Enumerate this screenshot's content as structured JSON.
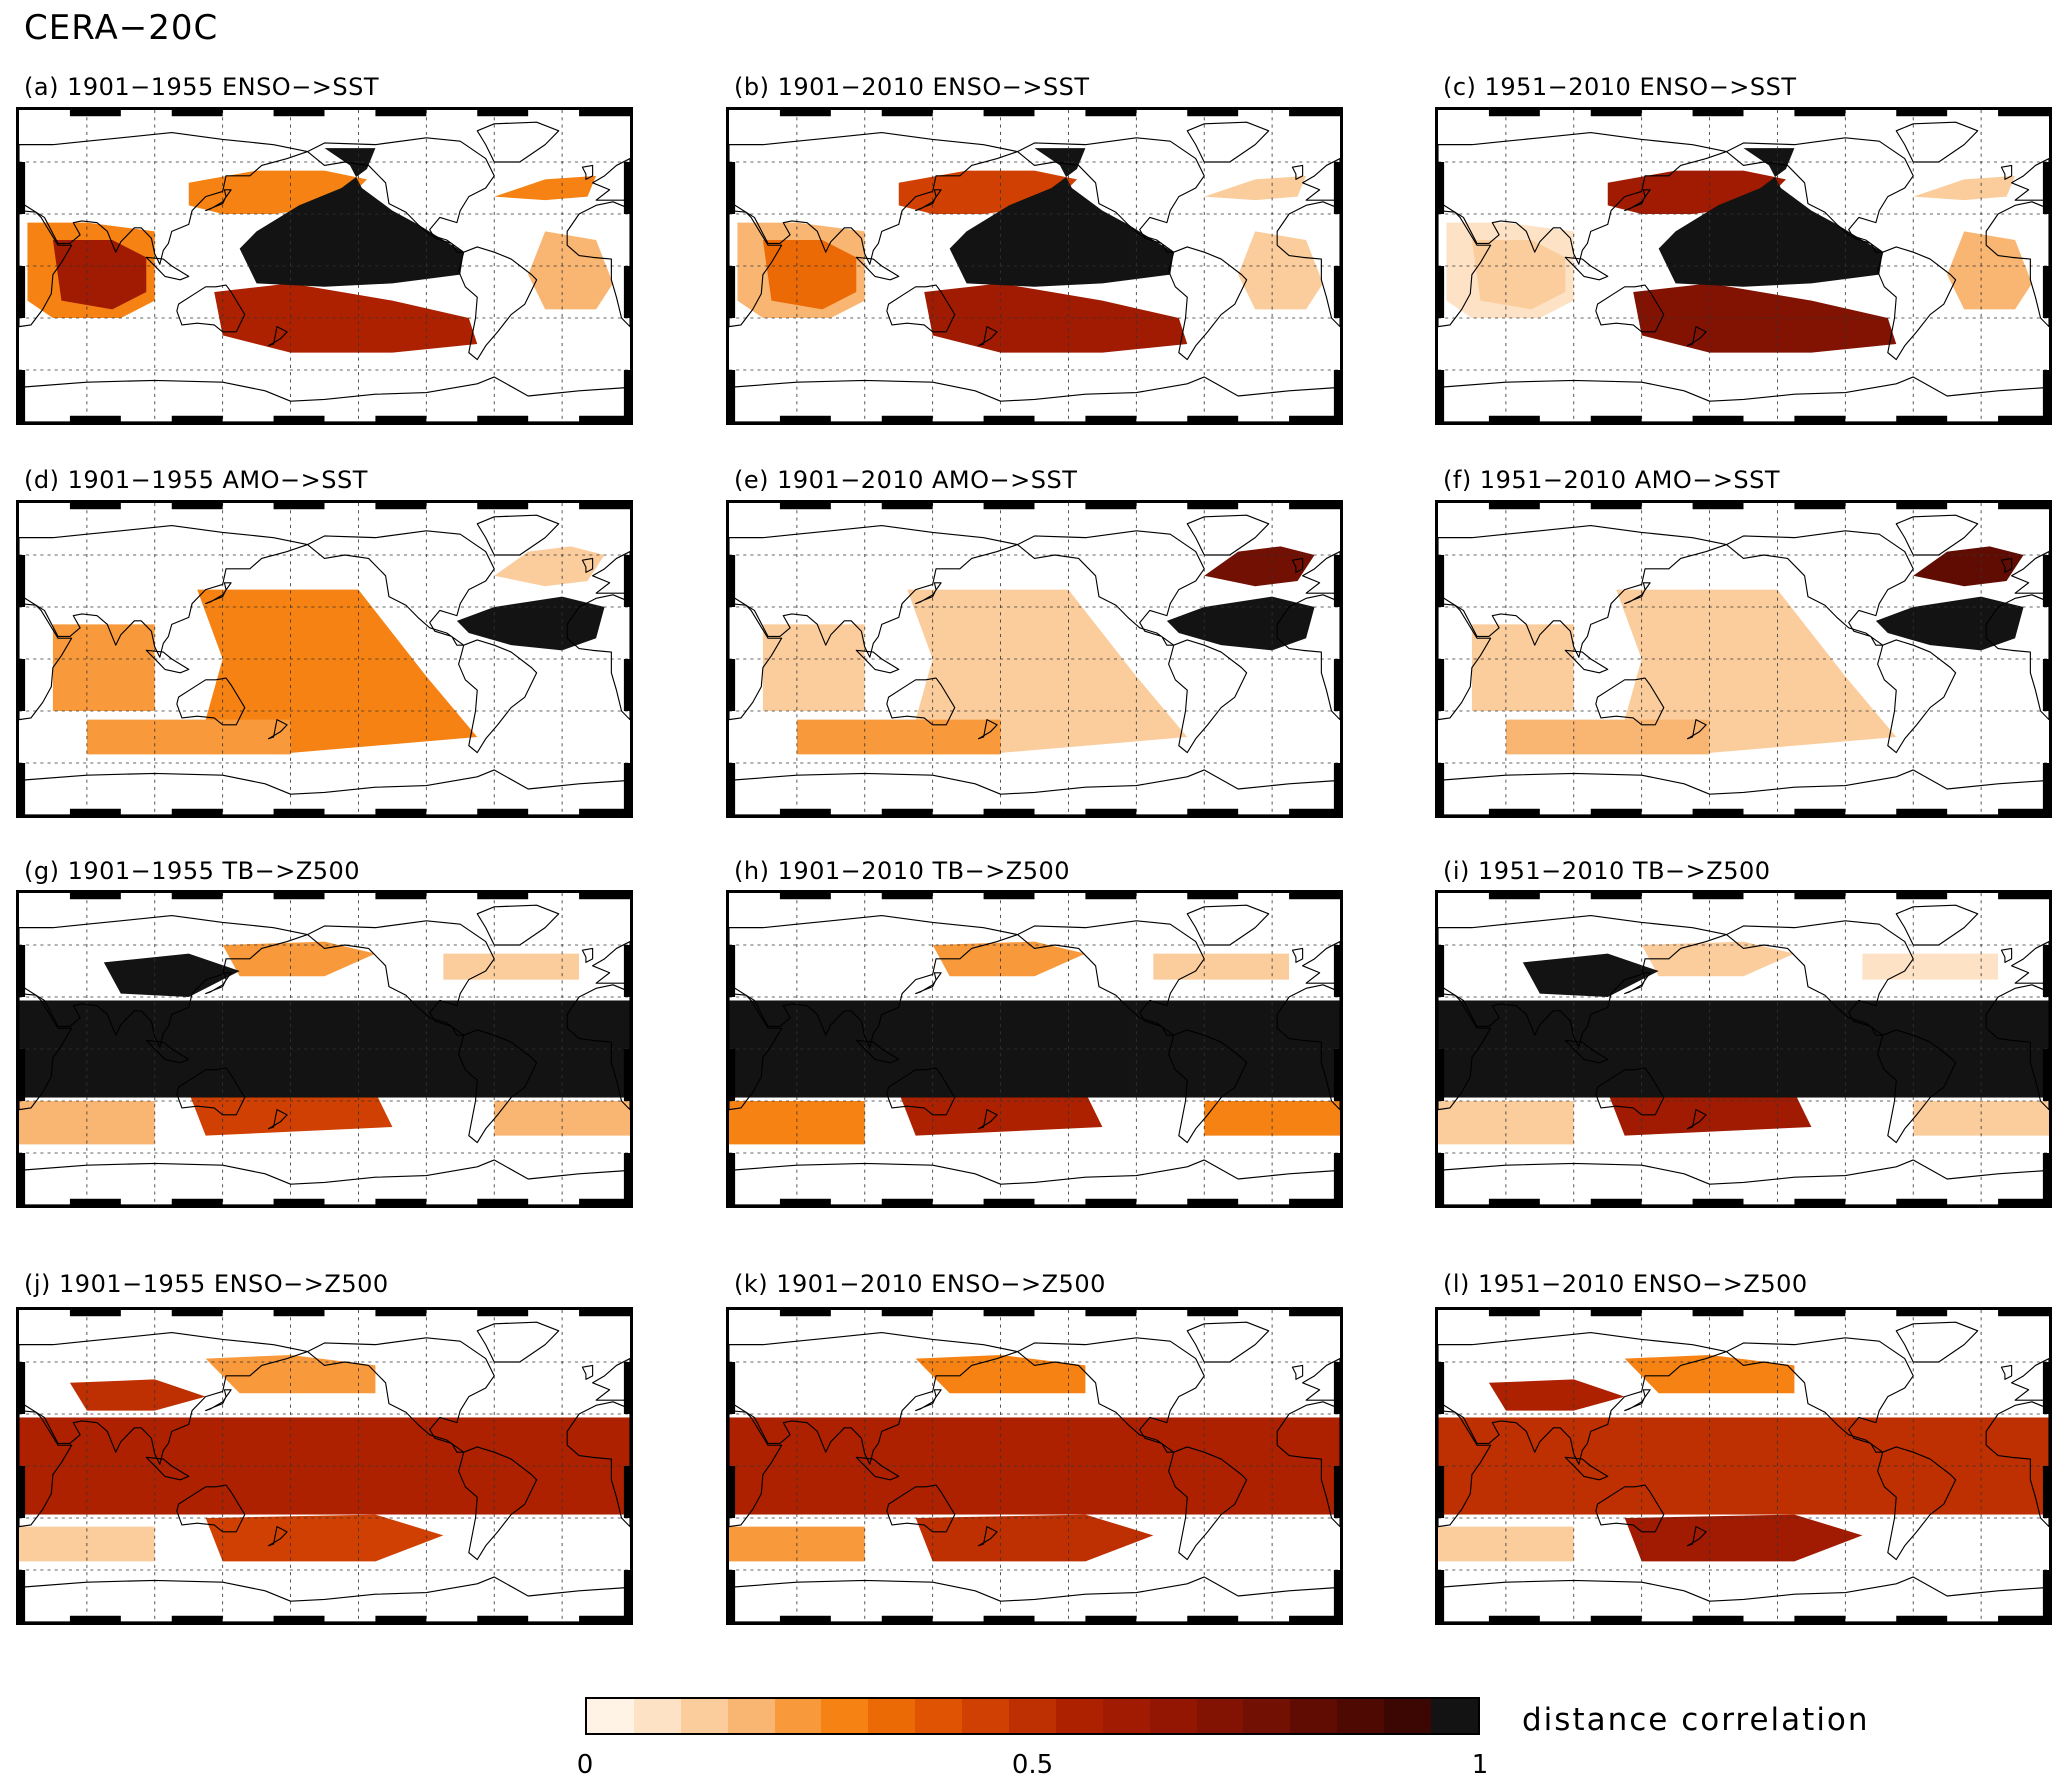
{
  "figure_title": "CERA−20C",
  "colors": {
    "scale": [
      "#fff3e6",
      "#fde2c6",
      "#fbcd9c",
      "#f9b672",
      "#f89a3c",
      "#f58212",
      "#ec6a06",
      "#df5303",
      "#d04002",
      "#be2f01",
      "#ad2101",
      "#a11a02",
      "#921602",
      "#821303",
      "#721003",
      "#600c03",
      "#4f0903",
      "#3c0602",
      "#131313"
    ],
    "coast": "#000000",
    "grid": "#333333"
  },
  "panels": [
    {
      "label": "(a) 1901−1955 ENSO−>SST",
      "pattern": "enso_sst",
      "levels": {
        "pacific": 0.98,
        "nh": 0.3,
        "sh": 0.55,
        "indian": 0.6,
        "atlantic": 0.15,
        "natl": 0.3
      }
    },
    {
      "label": "(b) 1901−2010 ENSO−>SST",
      "pattern": "enso_sst",
      "levels": {
        "pacific": 0.98,
        "nh": 0.45,
        "sh": 0.6,
        "indian": 0.35,
        "atlantic": 0.1,
        "natl": 0.1
      }
    },
    {
      "label": "(c) 1951−2010 ENSO−>SST",
      "pattern": "enso_sst",
      "levels": {
        "pacific": 0.98,
        "nh": 0.6,
        "sh": 0.7,
        "indian": 0.1,
        "atlantic": 0.15,
        "natl": 0.1
      }
    },
    {
      "label": "(d) 1901−1955 AMO−>SST",
      "pattern": "amo_sst",
      "levels": {
        "atlantic": 0.98,
        "natl": 0.1,
        "pacific": 0.3,
        "indian": 0.2,
        "sh": 0.2
      }
    },
    {
      "label": "(e) 1901−2010 AMO−>SST",
      "pattern": "amo_sst",
      "levels": {
        "atlantic": 0.98,
        "natl": 0.8,
        "pacific": 0.1,
        "indian": 0.1,
        "sh": 0.2
      }
    },
    {
      "label": "(f) 1951−2010 AMO−>SST",
      "pattern": "amo_sst",
      "levels": {
        "atlantic": 0.98,
        "natl": 0.85,
        "pacific": 0.1,
        "indian": 0.1,
        "sh": 0.15
      }
    },
    {
      "label": "(g) 1901−1955 TB−>Z500",
      "pattern": "tb_z500",
      "levels": {
        "band": 0.98,
        "patch": 0.98,
        "nh": 0.2,
        "sh": 0.45,
        "sh_side": 0.15
      }
    },
    {
      "label": "(h) 1901−2010 TB−>Z500",
      "pattern": "tb_z500",
      "levels": {
        "band": 0.98,
        "patch": 0.0,
        "nh": 0.2,
        "sh": 0.55,
        "sh_side": 0.25
      }
    },
    {
      "label": "(i) 1951−2010 TB−>Z500",
      "pattern": "tb_z500",
      "levels": {
        "band": 0.98,
        "patch": 0.98,
        "nh": 0.1,
        "sh": 0.6,
        "sh_side": 0.1
      }
    },
    {
      "label": "(j) 1901−1955 ENSO−>Z500",
      "pattern": "enso_z500",
      "levels": {
        "band": 0.55,
        "nh": 0.2,
        "nhwest": 0.5,
        "sh": 0.45,
        "sh_side": 0.1
      }
    },
    {
      "label": "(k) 1901−2010 ENSO−>Z500",
      "pattern": "enso_z500",
      "levels": {
        "band": 0.58,
        "nh": 0.3,
        "nhwest": 0.0,
        "sh": 0.5,
        "sh_side": 0.2
      }
    },
    {
      "label": "(l) 1951−2010 ENSO−>Z500",
      "pattern": "enso_z500",
      "levels": {
        "band": 0.52,
        "nh": 0.25,
        "nhwest": 0.55,
        "sh": 0.6,
        "sh_side": 0.1
      }
    }
  ],
  "colorbar": {
    "label": "distance correlation",
    "ticks": [
      {
        "value": 0,
        "label": "0"
      },
      {
        "value": 0.5,
        "label": "0.5"
      },
      {
        "value": 1,
        "label": "1"
      }
    ]
  }
}
